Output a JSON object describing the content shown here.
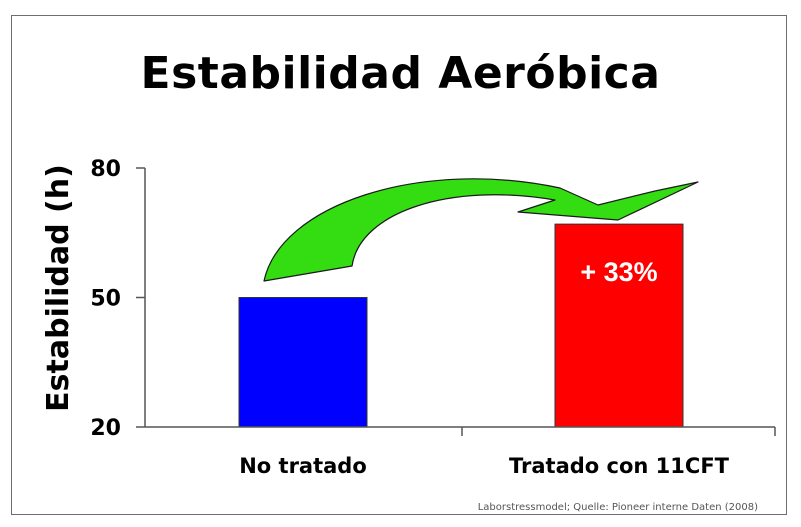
{
  "chart_data": {
    "type": "bar",
    "title": "Estabilidad Aeróbica",
    "ylabel": "Estabilidad (h)",
    "xlabel": "",
    "ylim": [
      20,
      80
    ],
    "yticks": [
      "80",
      "50",
      "20"
    ],
    "categories": [
      "No tratado",
      "Tratado con 11CFT"
    ],
    "values": [
      50,
      67
    ],
    "bar_colors": [
      "#0000ff",
      "#ff0000"
    ],
    "bar_labels": [
      "",
      "+ 33%"
    ],
    "arrow_color": "#33dd11",
    "grid": false,
    "legend": "none"
  },
  "source_note": "Laborstressmodel; Quelle: Pioneer interne Daten (2008)"
}
